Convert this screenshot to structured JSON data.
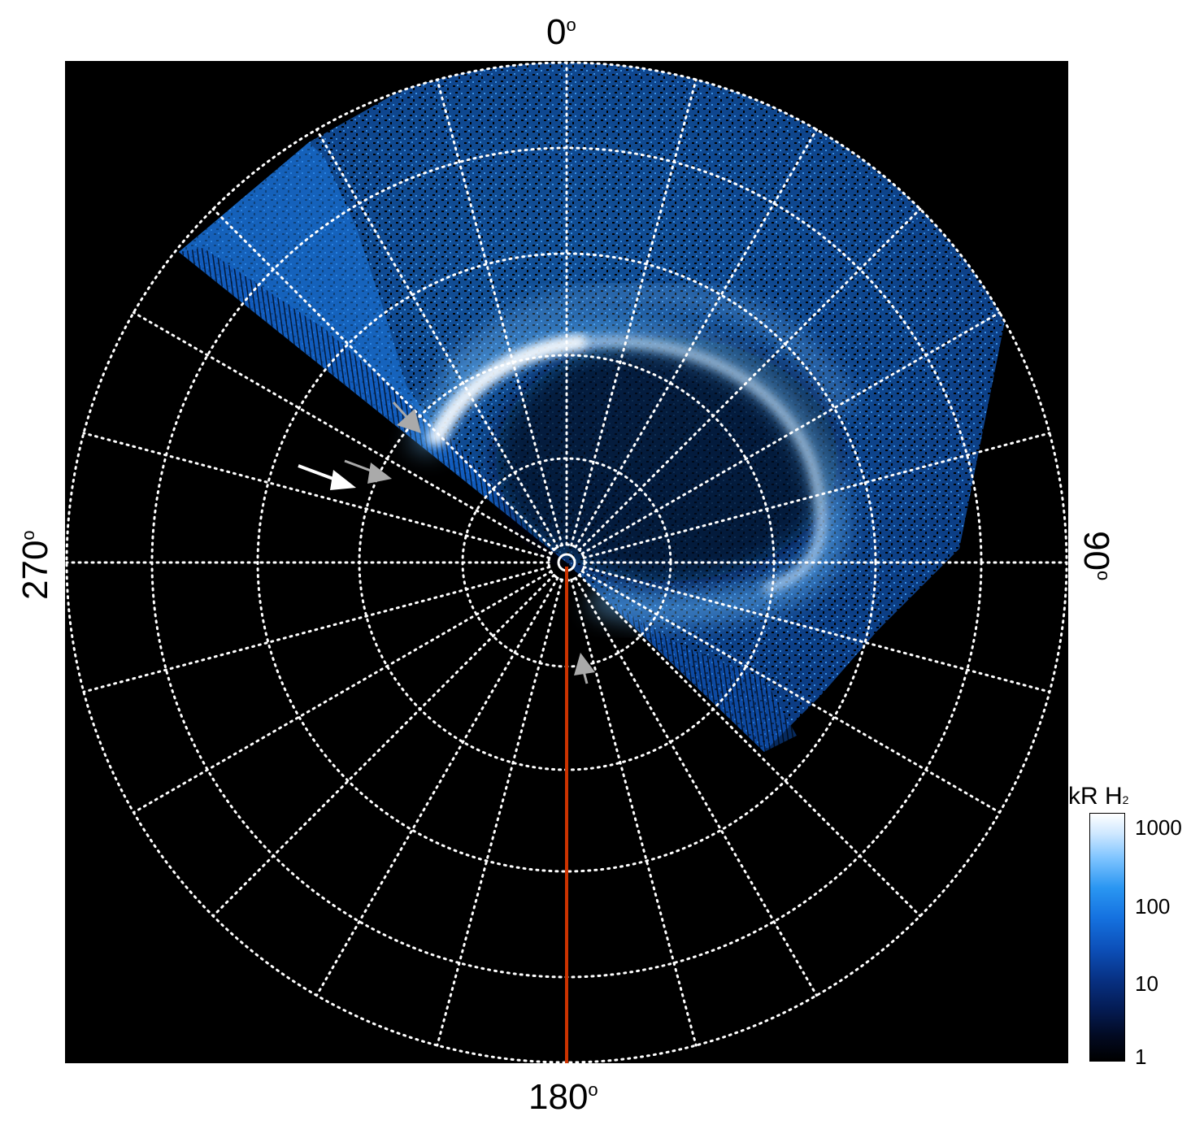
{
  "axis_labels": {
    "top": "0",
    "bottom": "180",
    "left": "270",
    "right": "90",
    "degree_symbol": "o"
  },
  "colorbar": {
    "title": "kR H",
    "title_subscript": "2",
    "ticks": [
      "1000",
      "100",
      "10",
      "1"
    ],
    "colormap": [
      "#000000",
      "#041a50",
      "#0c4fb8",
      "#2a96f2",
      "#cfe8ff",
      "#ffffff"
    ]
  },
  "colors": {
    "grid": "#ffffff",
    "meridian_line": "#cc3300",
    "background": "#000000",
    "aurora": "#2a96f2"
  },
  "annotations": {
    "arrows": 4,
    "arrow_colors": [
      "#ffffff",
      "#aaaaaa"
    ]
  }
}
